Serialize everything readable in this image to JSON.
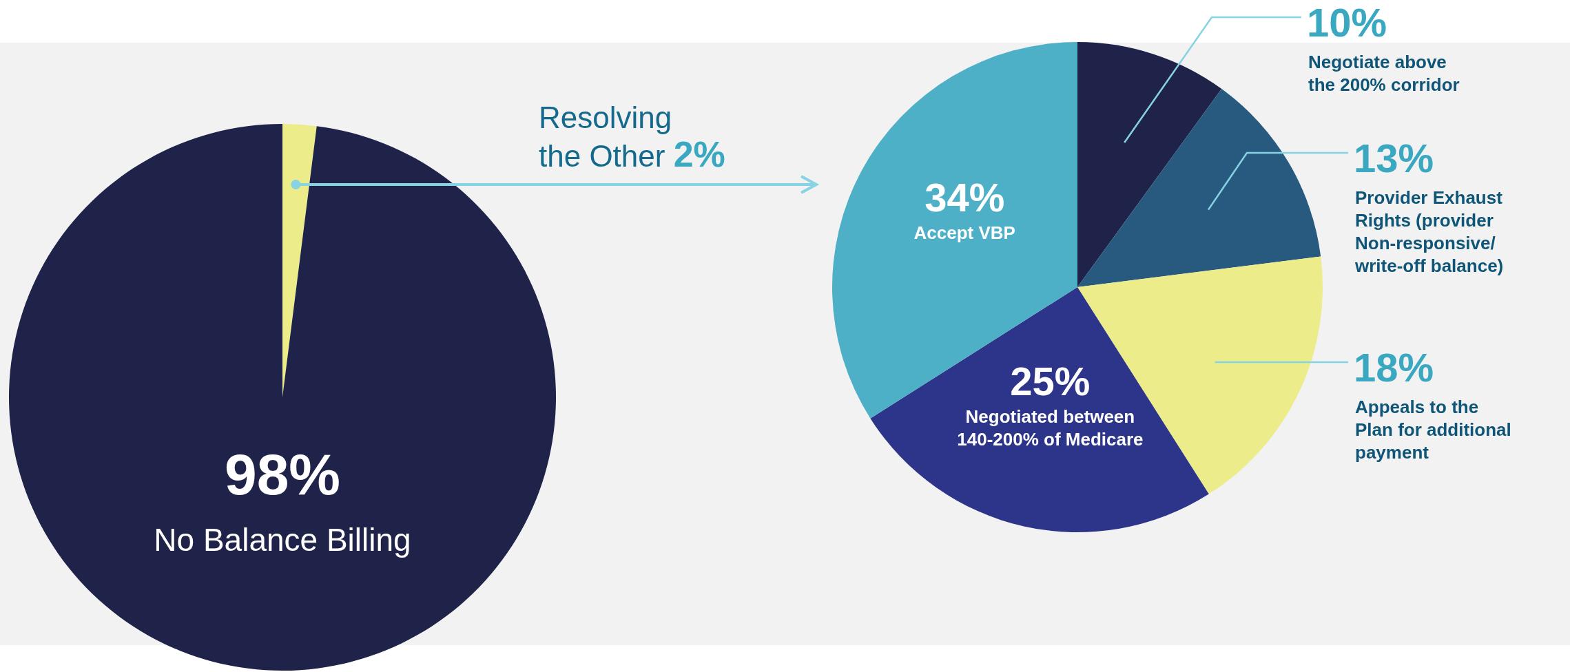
{
  "chart_data": [
    {
      "type": "pie",
      "categories": [
        null,
        "No Balance Billing"
      ],
      "values": [
        2,
        98
      ],
      "colors": [
        "#ecec8a",
        "#1f2349"
      ],
      "value_labels": [
        null,
        "98%"
      ],
      "annotations": [
        "Resolving the Other",
        "2%"
      ]
    },
    {
      "type": "pie",
      "categories": [
        "Negotiate above the 200% corridor",
        "Provider Exhaust Rights (provider Non-responsive/ write-off balance)",
        "Appeals to the Plan for additional payment",
        "Negotiated between 140-200% of Medicare",
        "Accept VBP"
      ],
      "values": [
        10,
        13,
        18,
        25,
        34
      ],
      "colors": [
        "#1f2349",
        "#285a80",
        "#ecec8a",
        "#2d358a",
        "#4eb0c7"
      ],
      "value_labels": [
        "10%",
        "13%",
        "18%",
        "25%",
        "34%"
      ]
    }
  ]
}
